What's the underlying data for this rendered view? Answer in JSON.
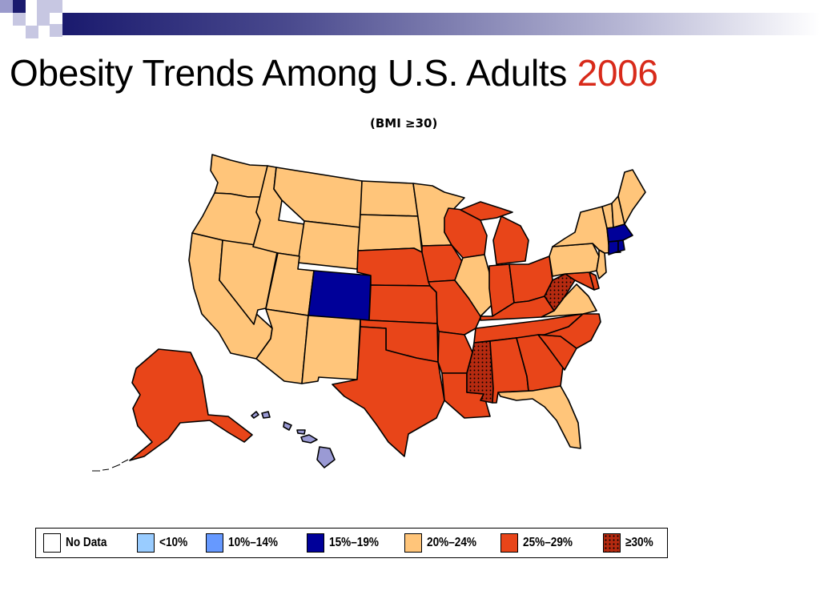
{
  "slide": {
    "title_main": "Obesity Trends Among U.S. Adults",
    "title_year": "2006",
    "subtitle": "(BMI ≥30)"
  },
  "colors": {
    "no_data": "#ffffff",
    "lt10": "#99ccff",
    "10_14": "#6699ff",
    "15_19": "#000099",
    "20_24": "#ffc57a",
    "25_29": "#e84519",
    "ge30": "#b52a10",
    "hawaii": "#9a9ad4",
    "title_year": "#d82a1a"
  },
  "legend": [
    {
      "label": "No Data",
      "category": "no_data"
    },
    {
      "label": "<10%",
      "category": "lt10"
    },
    {
      "label": "10%–14%",
      "category": "10_14"
    },
    {
      "label": "15%–19%",
      "category": "15_19"
    },
    {
      "label": "20%–24%",
      "category": "20_24"
    },
    {
      "label": "25%–29%",
      "category": "25_29"
    },
    {
      "label": "≥30%",
      "category": "ge30"
    }
  ],
  "states": {
    "WA": "20_24",
    "OR": "20_24",
    "CA": "20_24",
    "NV": "20_24",
    "ID": "20_24",
    "MT": "20_24",
    "WY": "20_24",
    "UT": "20_24",
    "AZ": "20_24",
    "CO": "15_19",
    "NM": "20_24",
    "ND": "20_24",
    "SD": "20_24",
    "NE": "25_29",
    "KS": "25_29",
    "OK": "25_29",
    "TX": "25_29",
    "MN": "20_24",
    "IA": "25_29",
    "MO": "25_29",
    "AR": "25_29",
    "LA": "25_29",
    "WI": "25_29",
    "IL": "20_24",
    "MI": "25_29",
    "IN": "25_29",
    "OH": "25_29",
    "KY": "25_29",
    "TN": "25_29",
    "MS": "ge30",
    "AL": "25_29",
    "GA": "25_29",
    "FL": "20_24",
    "SC": "25_29",
    "NC": "25_29",
    "VA": "20_24",
    "WV": "ge30",
    "MD": "25_29",
    "DE": "25_29",
    "PA": "20_24",
    "NJ": "20_24",
    "NY": "20_24",
    "CT": "15_19",
    "RI": "15_19",
    "MA": "15_19",
    "VT": "20_24",
    "NH": "20_24",
    "ME": "20_24",
    "AK": "25_29",
    "HI": "hawaii"
  }
}
